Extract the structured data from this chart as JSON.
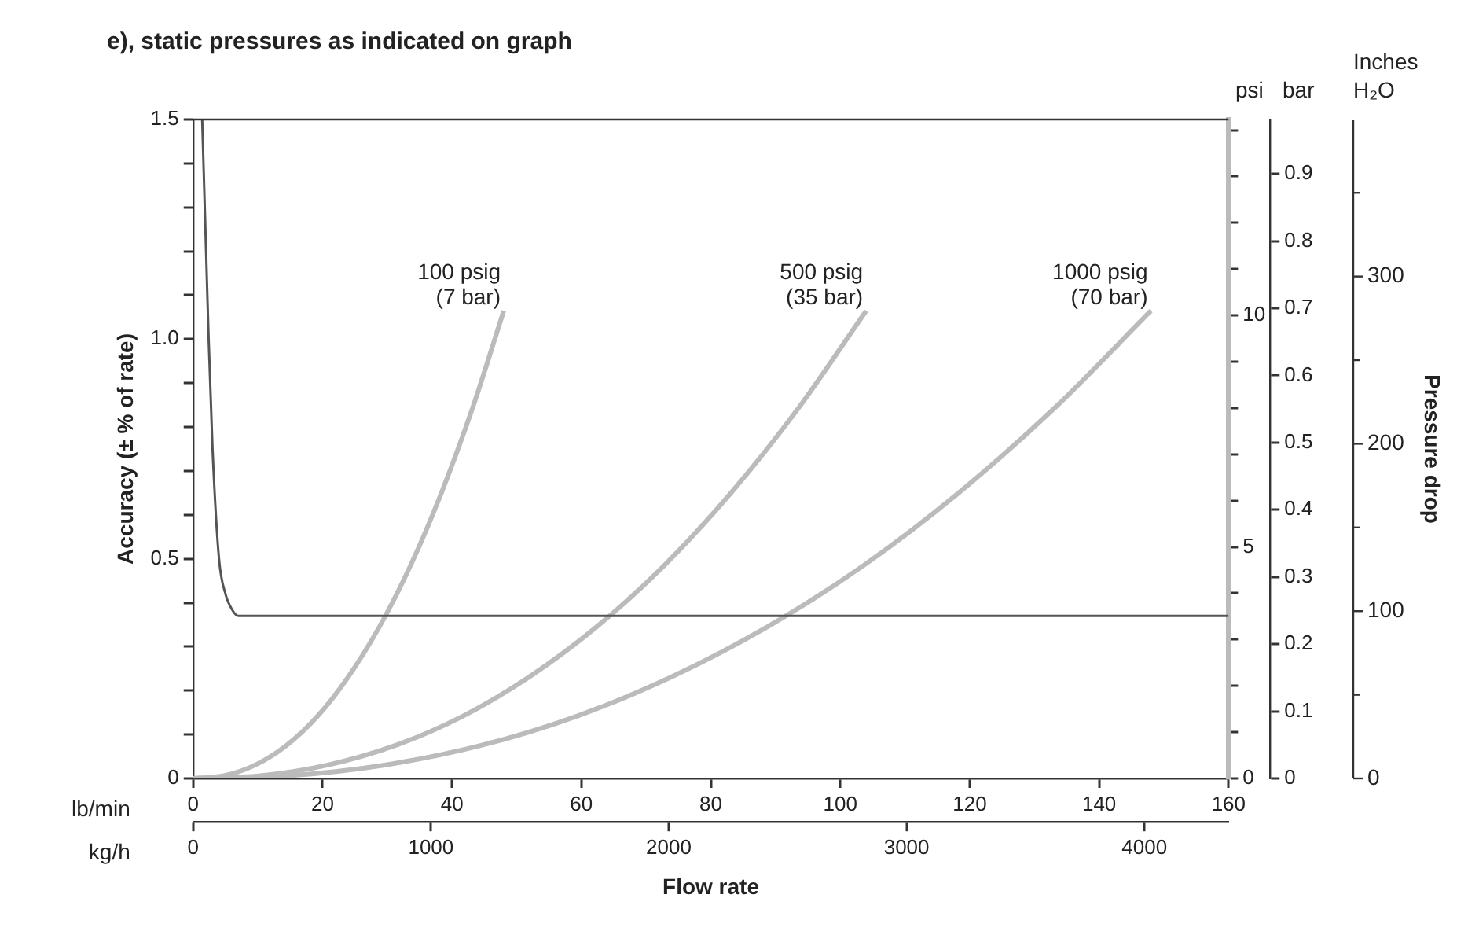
{
  "chart_data": {
    "type": "line",
    "title": "e), static pressures as indicated on graph",
    "xlabel": "Flow rate",
    "ylabel": "Accuracy (± % of rate)",
    "y2label": "Pressure drop",
    "annotations": [
      "lb/min",
      "kg/h",
      "psi",
      "bar",
      "Inches H₂O",
      "0",
      "100",
      "200",
      "300"
    ],
    "legend": false,
    "grid": false,
    "marker": "none",
    "line_style": "solid",
    "xlim": [
      0,
      160
    ],
    "xticks": [
      0,
      20,
      40,
      60,
      80,
      100,
      120,
      140,
      160
    ],
    "x2lim": [
      0,
      4354
    ],
    "x2ticks": [
      0,
      1000,
      2000,
      3000,
      4000
    ],
    "ylim": [
      0,
      1.5
    ],
    "yticks": [
      0,
      {
        "value": 0.1,
        "label": null
      },
      {
        "value": 0.2,
        "label": null
      },
      {
        "value": 0.3,
        "label": null
      },
      {
        "value": 0.4,
        "label": null
      },
      0.5,
      {
        "value": 0.6,
        "label": null
      },
      {
        "value": 0.7,
        "label": null
      },
      {
        "value": 0.8,
        "label": null
      },
      {
        "value": 0.9,
        "label": null
      },
      {
        "value": 1,
        "label": "1.0"
      },
      {
        "value": 1.1,
        "label": null
      },
      {
        "value": 1.2,
        "label": null
      },
      {
        "value": 1.3,
        "label": null
      },
      {
        "value": 1.4,
        "label": null
      },
      1.5
    ],
    "y2lim": [
      0,
      14.23
    ],
    "y2ticks": [
      0,
      {
        "value": 1,
        "label": null
      },
      {
        "value": 2,
        "label": null
      },
      {
        "value": 3,
        "label": null
      },
      {
        "value": 4,
        "label": null
      },
      5,
      {
        "value": 6,
        "label": null
      },
      {
        "value": 7,
        "label": null
      },
      {
        "value": 8,
        "label": null
      },
      {
        "value": 9,
        "label": null
      },
      10,
      {
        "value": 11,
        "label": null
      },
      {
        "value": 12,
        "label": null
      },
      {
        "value": 13,
        "label": null
      },
      {
        "value": 14,
        "label": null
      }
    ],
    "y3lim": [
      0,
      0.981
    ],
    "y3ticks": [
      0,
      0.1,
      0.2,
      0.3,
      0.4,
      0.5,
      0.6,
      0.7,
      0.8,
      0.9
    ],
    "series": [
      {
        "color": "#555555",
        "x": [
          1.4,
          2.0,
          2.4,
          3.0,
          4.0,
          5.0,
          6.0,
          7.0,
          160
        ],
        "values": [
          1.5,
          1.2,
          1.0,
          0.75,
          0.5,
          0.42,
          0.385,
          0.37,
          0.37
        ]
      },
      {
        "name": "100 psig\n(7 bar)",
        "color": "#bbbbbb",
        "axis": "y2",
        "x": [
          0,
          4.8,
          9.6,
          14.4,
          19.2,
          24,
          28.8,
          33.6,
          38.4,
          43.2,
          48
        ],
        "values": [
          0,
          0.06,
          0.29,
          0.71,
          1.34,
          2.2,
          3.28,
          4.6,
          6.18,
          8.01,
          10.1
        ]
      },
      {
        "name": "500 psig\n(35 bar)",
        "color": "#bbbbbb",
        "axis": "y2",
        "x": [
          0,
          10.4,
          20.8,
          31.2,
          41.6,
          52,
          62.4,
          72.8,
          83.2,
          93.6,
          104
        ],
        "values": [
          0,
          0.06,
          0.29,
          0.71,
          1.34,
          2.2,
          3.28,
          4.6,
          6.18,
          8.01,
          10.1
        ]
      },
      {
        "name": "1000 psig\n(70 bar)",
        "color": "#bbbbbb",
        "axis": "y2",
        "x": [
          0,
          14.8,
          29.6,
          44.4,
          59.2,
          74,
          88.8,
          103.6,
          118.4,
          133.2,
          148
        ],
        "values": [
          0,
          0.06,
          0.29,
          0.71,
          1.34,
          2.2,
          3.28,
          4.6,
          6.18,
          8.01,
          10.1
        ]
      }
    ]
  }
}
